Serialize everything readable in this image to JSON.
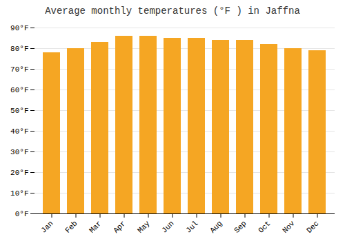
{
  "chart_data": {
    "type": "bar",
    "title": "Average monthly temperatures (°F ) in Jaffna",
    "categories": [
      "Jan",
      "Feb",
      "Mar",
      "Apr",
      "May",
      "Jun",
      "Jul",
      "Aug",
      "Sep",
      "Oct",
      "Nov",
      "Dec"
    ],
    "values": [
      78,
      80,
      83,
      86,
      86,
      85,
      85,
      84,
      84,
      82,
      80,
      79
    ],
    "color": "#F5A623",
    "ylim": [
      0,
      90
    ],
    "yticks": [
      {
        "value": 0,
        "label": "0°F"
      },
      {
        "value": 10,
        "label": "10°F"
      },
      {
        "value": 20,
        "label": "20°F"
      },
      {
        "value": 30,
        "label": "30°F"
      },
      {
        "value": 40,
        "label": "40°F"
      },
      {
        "value": 50,
        "label": "50°F"
      },
      {
        "value": 60,
        "label": "60°F"
      },
      {
        "value": 70,
        "label": "70°F"
      },
      {
        "value": 80,
        "label": "80°F"
      },
      {
        "value": 90,
        "label": "90°F"
      }
    ],
    "grid": true
  }
}
